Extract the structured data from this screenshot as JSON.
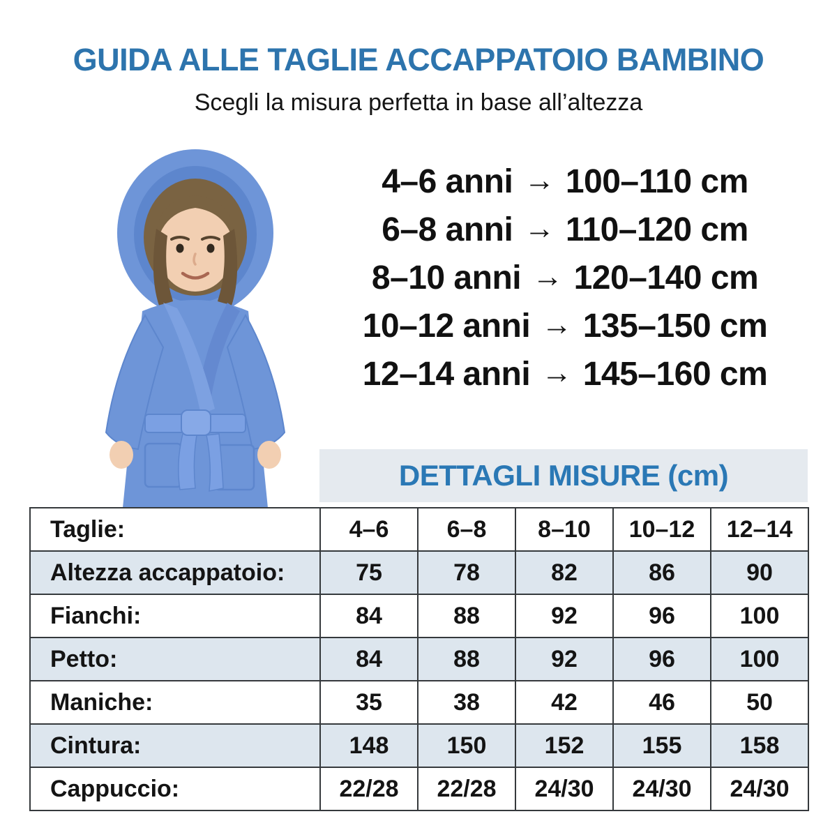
{
  "header": {
    "title": "GUIDA ALLE TAGLIE ACCAPPATOIO BAMBINO",
    "subtitle": "Scegli la misura perfetta in base all’altezza"
  },
  "size_list": {
    "arrow_icon": "→",
    "items": [
      {
        "age": "4–6 anni",
        "height": "100–110 cm"
      },
      {
        "age": "6–8 anni",
        "height": "110–120 cm"
      },
      {
        "age": "8–10 anni",
        "height": "120–140 cm"
      },
      {
        "age": "10–12 anni",
        "height": "135–150 cm"
      },
      {
        "age": "12–14 anni",
        "height": "145–160 cm"
      }
    ]
  },
  "measure_table": {
    "header": "DETTAGLI MISURE (cm)",
    "rows": [
      {
        "label": "Taglie:",
        "values": [
          "4–6",
          "6–8",
          "8–10",
          "10–12",
          "12–14"
        ]
      },
      {
        "label": "Altezza accappatoio:",
        "values": [
          "75",
          "78",
          "82",
          "86",
          "90"
        ]
      },
      {
        "label": "Fianchi:",
        "values": [
          "84",
          "88",
          "92",
          "96",
          "100"
        ]
      },
      {
        "label": "Petto:",
        "values": [
          "84",
          "88",
          "92",
          "96",
          "100"
        ]
      },
      {
        "label": "Maniche:",
        "values": [
          "35",
          "38",
          "42",
          "46",
          "50"
        ]
      },
      {
        "label": "Cintura:",
        "values": [
          "148",
          "150",
          "152",
          "155",
          "158"
        ]
      },
      {
        "label": "Cappuccio:",
        "values": [
          "22/28",
          "22/28",
          "24/30",
          "24/30",
          "24/30"
        ]
      }
    ]
  },
  "colors": {
    "accent_blue": "#2d74ad",
    "table_header_blue": "#2a78b5",
    "table_header_bg": "#e5eaef",
    "table_alt_row_bg": "#dde6ee",
    "table_border": "#35393c",
    "robe_blue": "#6e95d8"
  }
}
